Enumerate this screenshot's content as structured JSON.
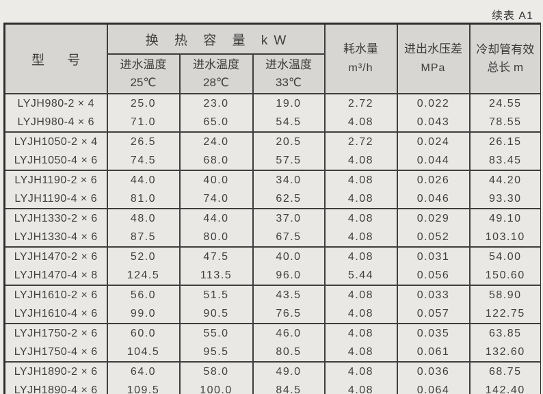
{
  "caption": "续表 A1",
  "colors": {
    "paper": "#ecebe7",
    "header_cell": "#d8d6d2",
    "body_cell": "#e9e8e4",
    "line": "#3e3e3e",
    "text": "#3c3c3c"
  },
  "table": {
    "model_header": "型 号",
    "capacity_group_header": "换 热 容 量 kW",
    "sub_headers": [
      {
        "line1": "进水温度",
        "line2": "25℃"
      },
      {
        "line1": "进水温度",
        "line2": "28℃"
      },
      {
        "line1": "进水温度",
        "line2": "33℃"
      }
    ],
    "other_headers": [
      {
        "line1": "耗水量",
        "line2": "m³/h"
      },
      {
        "line1": "进出水压差",
        "line2": "MPa"
      },
      {
        "line1": "冷却管有效",
        "line2": "总长 m"
      }
    ],
    "groups": [
      {
        "rows": [
          [
            "LYJH980-2 × 4",
            "25.0",
            "23.0",
            "19.0",
            "2.72",
            "0.022",
            "24.55"
          ],
          [
            "LYJH980-4 × 6",
            "71.0",
            "65.0",
            "54.5",
            "4.08",
            "0.043",
            "78.55"
          ]
        ]
      },
      {
        "rows": [
          [
            "LYJH1050-2 × 4",
            "26.5",
            "24.0",
            "20.5",
            "2.72",
            "0.024",
            "26.15"
          ],
          [
            "LYJH1050-4 × 6",
            "74.5",
            "68.0",
            "57.5",
            "4.08",
            "0.044",
            "83.45"
          ]
        ]
      },
      {
        "rows": [
          [
            "LYJH1190-2 × 6",
            "44.0",
            "40.0",
            "34.0",
            "4.08",
            "0.026",
            "44.20"
          ],
          [
            "LYJH1190-4 × 6",
            "81.0",
            "74.0",
            "62.5",
            "4.08",
            "0.046",
            "93.30"
          ]
        ]
      },
      {
        "rows": [
          [
            "LYJH1330-2 × 6",
            "48.0",
            "44.0",
            "37.0",
            "4.08",
            "0.029",
            "49.10"
          ],
          [
            "LYJH1330-4 × 6",
            "87.5",
            "80.0",
            "67.5",
            "4.08",
            "0.052",
            "103.10"
          ]
        ]
      },
      {
        "rows": [
          [
            "LYJH1470-2 × 6",
            "52.0",
            "47.5",
            "40.0",
            "4.08",
            "0.031",
            "54.00"
          ],
          [
            "LYJH1470-4 × 8",
            "124.5",
            "113.5",
            "96.0",
            "5.44",
            "0.056",
            "150.60"
          ]
        ]
      },
      {
        "rows": [
          [
            "LYJH1610-2 × 6",
            "56.0",
            "51.5",
            "43.5",
            "4.08",
            "0.033",
            "58.90"
          ],
          [
            "LYJH1610-4 × 6",
            "99.0",
            "90.5",
            "76.5",
            "4.08",
            "0.057",
            "122.75"
          ]
        ]
      },
      {
        "rows": [
          [
            "LYJH1750-2 × 6",
            "60.0",
            "55.0",
            "46.0",
            "4.08",
            "0.035",
            "63.85"
          ],
          [
            "LYJH1750-4 × 6",
            "104.5",
            "95.5",
            "80.5",
            "4.08",
            "0.061",
            "132.60"
          ]
        ]
      },
      {
        "rows": [
          [
            "LYJH1890-2 × 6",
            "64.0",
            "58.0",
            "49.0",
            "4.08",
            "0.036",
            "68.75"
          ],
          [
            "LYJH1890-4 × 6",
            "109.5",
            "100.0",
            "84.5",
            "4.08",
            "0.064",
            "142.40"
          ]
        ]
      }
    ]
  }
}
